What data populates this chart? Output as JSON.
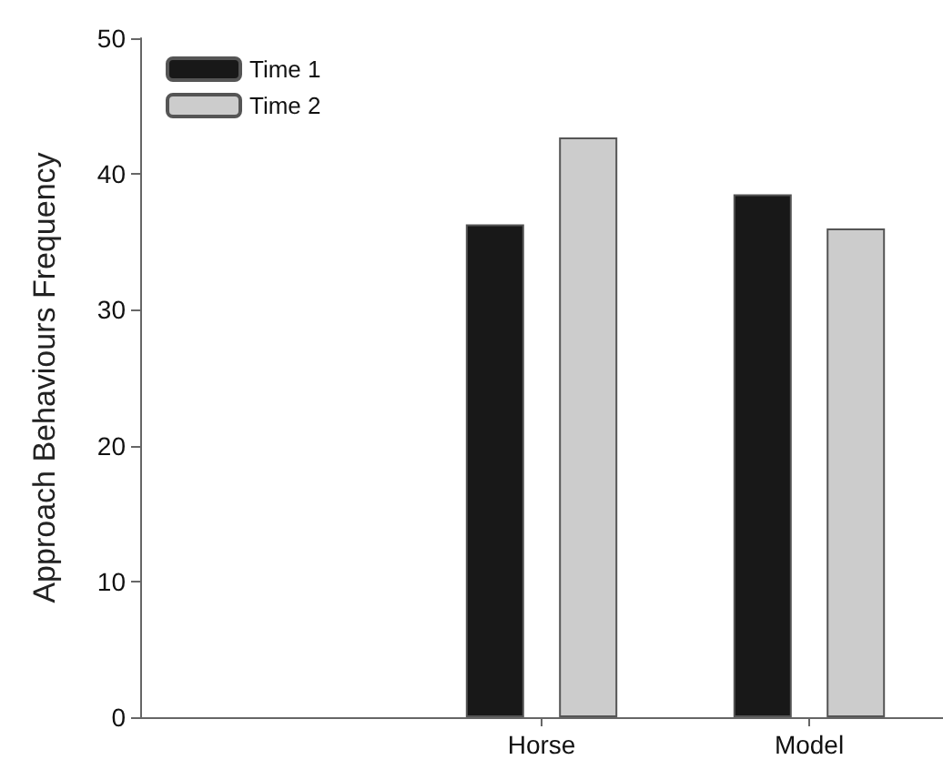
{
  "chart_data": {
    "type": "bar",
    "ylabel": "Approach Behaviours Frequency",
    "categories": [
      null,
      "Horse",
      "Model"
    ],
    "series": [
      {
        "name": "Time 1",
        "color": "#181818",
        "values": [
          null,
          36.3,
          38.5
        ]
      },
      {
        "name": "Time 2",
        "color": "#cccccc",
        "values": [
          null,
          42.7,
          36.0
        ]
      }
    ],
    "ylim": [
      0,
      50
    ],
    "yticks": [
      0,
      10,
      20,
      30,
      40,
      50
    ],
    "grid": false,
    "legend": "top left"
  }
}
